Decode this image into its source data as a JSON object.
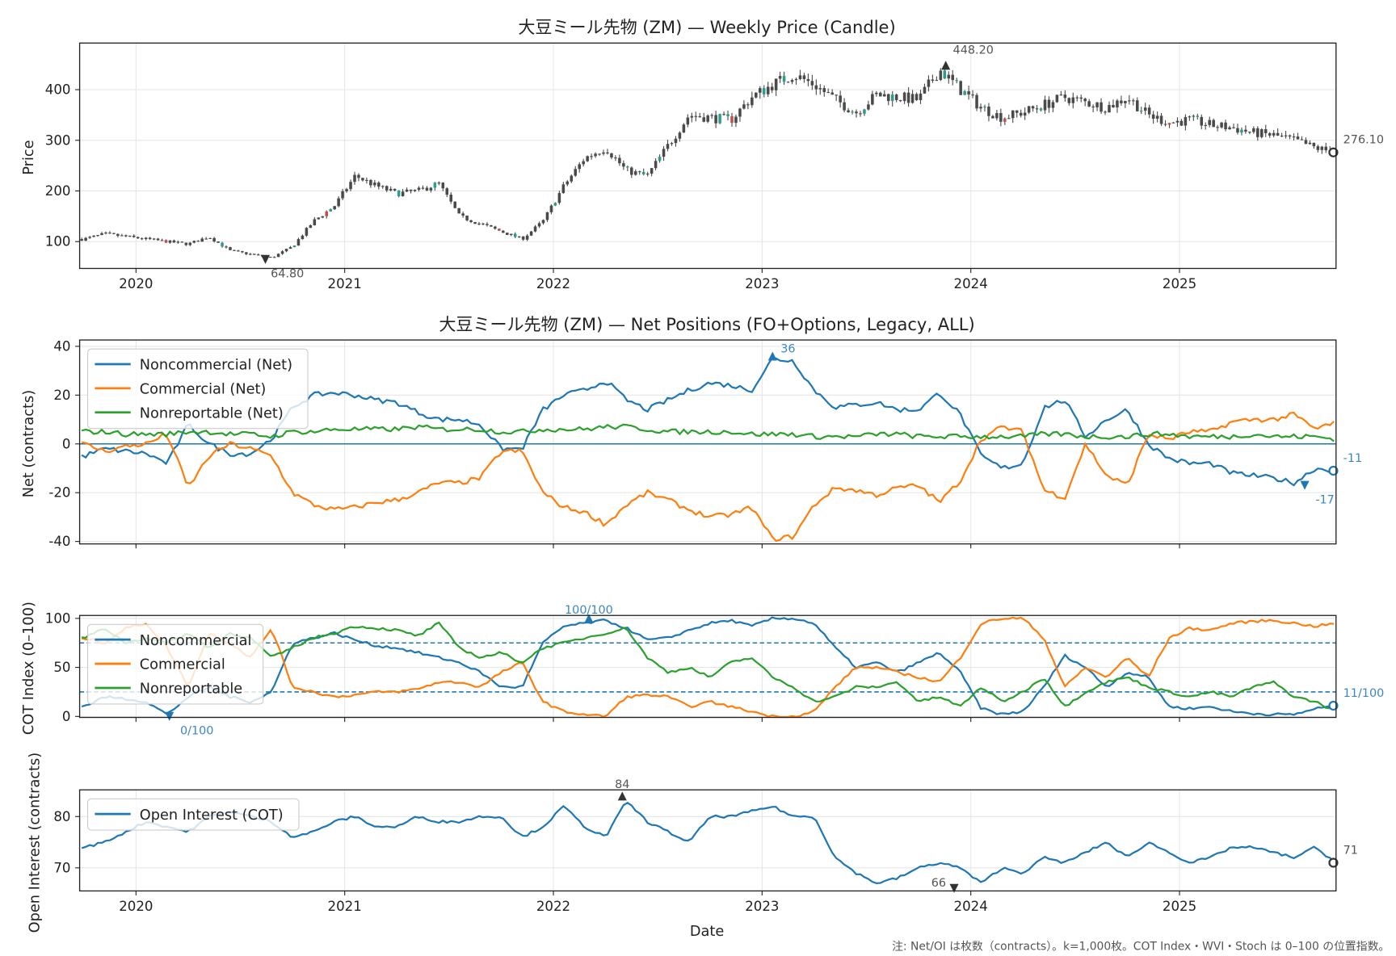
{
  "colors": {
    "blue": "#1f77b4",
    "orange": "#ff7f0e",
    "green": "#2ca02c",
    "candle": "#4a4a4a",
    "annot_dark": "#555555",
    "annot_blue": "#3b87c4"
  },
  "x_axis": {
    "label": "Date",
    "ticks": [
      "2020",
      "2021",
      "2022",
      "2023",
      "2024",
      "2025"
    ],
    "tick_values": [
      2020,
      2021,
      2022,
      2023,
      2024,
      2025
    ],
    "range": [
      2019.73,
      2025.75
    ]
  },
  "footnote": "注: Net/OI は枚数（contracts）。k=1,000枚。COT Index・WVI・Stoch は 0–100 の位置指数。",
  "chart_data": [
    {
      "type": "candlestick",
      "title": "大豆ミール先物 (ZM) — Weekly Price (Candle)",
      "ylabel": "Price",
      "ylim": [
        47,
        492
      ],
      "yticks": [
        100,
        200,
        300,
        400
      ],
      "x": [
        2019.75,
        2019.85,
        2019.95,
        2020.05,
        2020.15,
        2020.25,
        2020.35,
        2020.45,
        2020.55,
        2020.65,
        2020.75,
        2020.85,
        2020.95,
        2021.05,
        2021.15,
        2021.25,
        2021.35,
        2021.45,
        2021.55,
        2021.65,
        2021.75,
        2021.85,
        2021.95,
        2022.05,
        2022.15,
        2022.25,
        2022.35,
        2022.45,
        2022.55,
        2022.65,
        2022.75,
        2022.85,
        2022.95,
        2023.05,
        2023.15,
        2023.25,
        2023.35,
        2023.45,
        2023.55,
        2023.65,
        2023.75,
        2023.85,
        2023.95,
        2024.05,
        2024.15,
        2024.25,
        2024.35,
        2024.45,
        2024.55,
        2024.65,
        2024.75,
        2024.85,
        2024.95,
        2025.05,
        2025.15,
        2025.25,
        2025.35,
        2025.45,
        2025.55,
        2025.65,
        2025.75
      ],
      "close": [
        105,
        115,
        110,
        105,
        100,
        95,
        110,
        82,
        75,
        68,
        90,
        140,
        170,
        230,
        210,
        195,
        200,
        215,
        150,
        135,
        120,
        105,
        140,
        210,
        265,
        285,
        240,
        230,
        290,
        350,
        345,
        340,
        385,
        410,
        430,
        410,
        380,
        355,
        390,
        385,
        380,
        440,
        400,
        365,
        345,
        355,
        370,
        385,
        375,
        365,
        385,
        350,
        335,
        340,
        330,
        325,
        315,
        310,
        300,
        285,
        276
      ],
      "annotations": [
        {
          "label": "448.20",
          "x": 2023.88,
          "y": 448.2,
          "marker": "up"
        },
        {
          "label": "64.80",
          "x": 2020.62,
          "y": 64.8,
          "marker": "down"
        },
        {
          "label": "276.10",
          "x": 2025.75,
          "y": 276.1,
          "marker": "last"
        }
      ]
    },
    {
      "type": "line",
      "title": "大豆ミール先物 (ZM) — Net Positions (FO+Options, Legacy, ALL)",
      "ylabel": "Net (contracts)",
      "ylim": [
        -41,
        42.6
      ],
      "yticks": [
        -40,
        -20,
        0,
        20,
        40
      ],
      "hline": 0,
      "series": [
        {
          "name": "Noncommercial (Net)",
          "color": "#1f77b4",
          "values": [
            -5,
            -2,
            -3,
            -4,
            -8,
            8,
            0,
            -4,
            -4,
            2,
            15,
            20,
            21,
            20,
            18,
            17,
            13,
            10,
            10,
            8,
            -2,
            -2,
            14,
            20,
            22,
            26,
            18,
            14,
            18,
            22,
            25,
            24,
            22,
            35,
            34,
            22,
            15,
            16,
            17,
            14,
            14,
            21,
            12,
            -5,
            -10,
            -8,
            15,
            18,
            3,
            10,
            14,
            0,
            -6,
            -8,
            -8,
            -12,
            -13,
            -14,
            -16,
            -10,
            -11
          ]
        },
        {
          "name": "Commercial (Net)",
          "color": "#ff7f0e",
          "values": [
            0,
            -3,
            -1,
            0,
            4,
            -18,
            -5,
            0,
            -2,
            -5,
            -20,
            -25,
            -27,
            -26,
            -24,
            -23,
            -20,
            -16,
            -16,
            -14,
            -3,
            -3,
            -20,
            -26,
            -28,
            -33,
            -25,
            -20,
            -23,
            -27,
            -30,
            -29,
            -26,
            -39,
            -38,
            -25,
            -18,
            -19,
            -21,
            -18,
            -17,
            -24,
            -15,
            2,
            7,
            5,
            -19,
            -22,
            0,
            -13,
            -17,
            4,
            2,
            5,
            5,
            9,
            10,
            10,
            12,
            6,
            9
          ]
        },
        {
          "name": "Nonreportable (Net)",
          "color": "#2ca02c",
          "values": [
            5,
            5,
            4,
            4,
            4,
            5,
            5,
            4,
            4,
            3,
            5,
            5,
            6,
            6,
            6,
            6,
            7,
            6,
            6,
            6,
            5,
            5,
            6,
            6,
            6,
            7,
            7,
            6,
            5,
            5,
            5,
            5,
            4,
            4,
            4,
            3,
            3,
            3,
            4,
            4,
            3,
            3,
            3,
            3,
            3,
            3,
            4,
            4,
            3,
            3,
            3,
            4,
            4,
            3,
            3,
            3,
            4,
            3,
            3,
            3,
            2
          ]
        }
      ],
      "annotations": [
        {
          "label": "36",
          "x": 2023.05,
          "y": 36,
          "marker": "up"
        },
        {
          "label": "-17",
          "x": 2025.6,
          "y": -17,
          "marker": "down"
        },
        {
          "label": "-11",
          "x": 2025.75,
          "y": -11,
          "marker": "last"
        }
      ]
    },
    {
      "type": "line",
      "title": "",
      "ylabel": "COT Index (0–100)",
      "ylim": [
        -1,
        103
      ],
      "yticks": [
        0,
        50,
        100
      ],
      "hlines_dashed": [
        25,
        75
      ],
      "series": [
        {
          "name": "Noncommercial",
          "color": "#1f77b4",
          "values": [
            10,
            20,
            18,
            15,
            2,
            20,
            30,
            20,
            15,
            25,
            75,
            80,
            85,
            78,
            72,
            70,
            65,
            60,
            55,
            45,
            30,
            30,
            75,
            92,
            95,
            98,
            90,
            78,
            80,
            88,
            95,
            98,
            92,
            100,
            100,
            95,
            70,
            50,
            55,
            45,
            55,
            65,
            45,
            8,
            2,
            5,
            30,
            62,
            50,
            30,
            45,
            40,
            10,
            8,
            10,
            5,
            3,
            2,
            2,
            8,
            11
          ]
        },
        {
          "name": "Commercial",
          "color": "#ff7f0e",
          "values": [
            80,
            75,
            90,
            95,
            70,
            30,
            85,
            75,
            60,
            90,
            30,
            25,
            20,
            22,
            25,
            25,
            28,
            35,
            35,
            30,
            45,
            55,
            15,
            5,
            2,
            0,
            20,
            22,
            20,
            10,
            15,
            10,
            5,
            0,
            0,
            5,
            30,
            50,
            50,
            45,
            40,
            35,
            60,
            95,
            100,
            100,
            80,
            30,
            50,
            40,
            60,
            40,
            80,
            90,
            88,
            95,
            97,
            98,
            95,
            92,
            95
          ]
        },
        {
          "name": "Nonreportable",
          "color": "#2ca02c",
          "values": [
            80,
            90,
            75,
            80,
            75,
            85,
            70,
            85,
            80,
            60,
            70,
            80,
            85,
            92,
            90,
            88,
            82,
            95,
            70,
            60,
            65,
            55,
            70,
            75,
            80,
            85,
            90,
            60,
            45,
            50,
            40,
            55,
            60,
            40,
            30,
            15,
            20,
            30,
            30,
            35,
            15,
            20,
            10,
            30,
            15,
            25,
            40,
            10,
            25,
            35,
            40,
            30,
            25,
            20,
            25,
            20,
            30,
            35,
            20,
            15,
            5
          ]
        }
      ],
      "annotations": [
        {
          "label": "100/100",
          "x": 2022.17,
          "y": 100,
          "marker": "up"
        },
        {
          "label": "0/100",
          "x": 2020.16,
          "y": 0,
          "marker": "down"
        },
        {
          "label": "11/100",
          "x": 2025.75,
          "y": 11,
          "marker": "last"
        }
      ]
    },
    {
      "type": "line",
      "title": "",
      "ylabel": "Open Interest (contracts)",
      "ylim": [
        65.5,
        85.2
      ],
      "yticks": [
        70,
        80
      ],
      "series": [
        {
          "name": "Open Interest (COT)",
          "color": "#1f77b4",
          "values": [
            74,
            75,
            77,
            79,
            78,
            77,
            80,
            81,
            80,
            79,
            76,
            77,
            79,
            80,
            78,
            78,
            80,
            79,
            79,
            80,
            80,
            76,
            78,
            82,
            78,
            76,
            83,
            79,
            77,
            75,
            80,
            80,
            81,
            82,
            80,
            80,
            72,
            69,
            67,
            68,
            70,
            71,
            70,
            67,
            70,
            69,
            72,
            71,
            73,
            75,
            72,
            75,
            73,
            71,
            72,
            74,
            74,
            73,
            72,
            74,
            71
          ]
        }
      ],
      "annotations": [
        {
          "label": "84",
          "x": 2022.33,
          "y": 84,
          "marker": "up"
        },
        {
          "label": "66",
          "x": 2023.92,
          "y": 66,
          "marker": "down"
        },
        {
          "label": "71",
          "x": 2025.75,
          "y": 71,
          "marker": "last"
        }
      ]
    }
  ]
}
